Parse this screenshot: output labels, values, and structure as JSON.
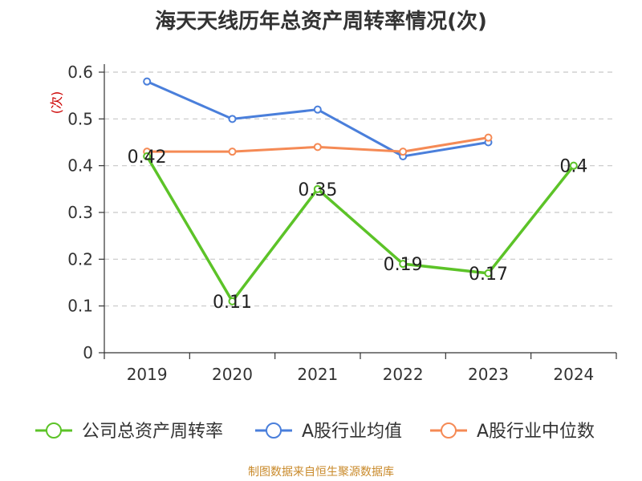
{
  "title": "海天天线历年总资产周转率情况(次)",
  "source_note": "制图数据来自恒生聚源数据库",
  "chart_data": {
    "type": "line",
    "title": "海天天线历年总资产周转率情况(次)",
    "xlabel": "",
    "ylabel": "(次)",
    "categories": [
      "2019",
      "2020",
      "2021",
      "2022",
      "2023",
      "2024"
    ],
    "ylim": [
      0,
      0.6
    ],
    "yticks": [
      0,
      0.1,
      0.2,
      0.3,
      0.4,
      0.5,
      0.6
    ],
    "ytick_labels": [
      "0",
      "0.1",
      "0.2",
      "0.3",
      "0.4",
      "0.5",
      "0.6"
    ],
    "grid": true,
    "legend_position": "bottom",
    "series": [
      {
        "name": "公司总资产周转率",
        "color": "#5cc328",
        "values": [
          0.42,
          0.11,
          0.35,
          0.19,
          0.17,
          0.4
        ],
        "labels": [
          "0.42",
          "0.11",
          "0.35",
          "0.19",
          "0.17",
          "0.4"
        ]
      },
      {
        "name": "A股行业均值",
        "color": "#4a7fdb",
        "values": [
          0.58,
          0.5,
          0.52,
          0.42,
          0.45,
          null
        ]
      },
      {
        "name": "A股行业中位数",
        "color": "#f58a55",
        "values": [
          0.43,
          0.43,
          0.44,
          0.43,
          0.46,
          null
        ]
      }
    ]
  }
}
